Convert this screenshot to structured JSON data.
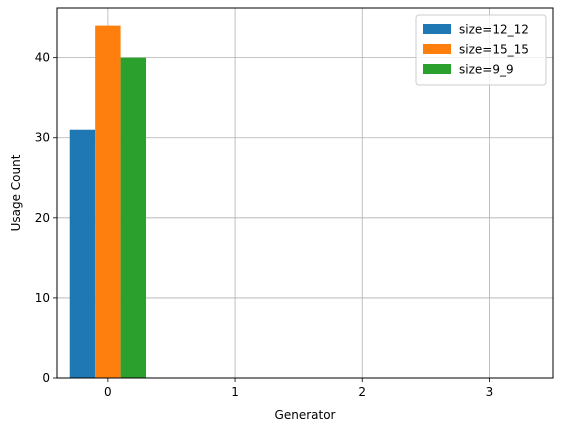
{
  "chart_data": {
    "type": "bar",
    "title": "",
    "xlabel": "Generator",
    "ylabel": "Usage Count",
    "x_ticks": [
      "0",
      "1",
      "2",
      "3"
    ],
    "x_range": [
      -0.4,
      3.5
    ],
    "y_ticks": [
      0,
      10,
      20,
      30,
      40
    ],
    "ylim": [
      0,
      46.2
    ],
    "grid": true,
    "legend_position": "top-right",
    "categories": [
      0,
      1,
      2,
      3
    ],
    "series": [
      {
        "name": "size=12_12",
        "color": "#1f77b4",
        "values": [
          31,
          0,
          0,
          0
        ]
      },
      {
        "name": "size=15_15",
        "color": "#ff7f0e",
        "values": [
          44,
          0,
          0,
          0
        ]
      },
      {
        "name": "size=9_9",
        "color": "#2ca02c",
        "values": [
          40,
          0,
          0,
          0
        ]
      }
    ]
  }
}
